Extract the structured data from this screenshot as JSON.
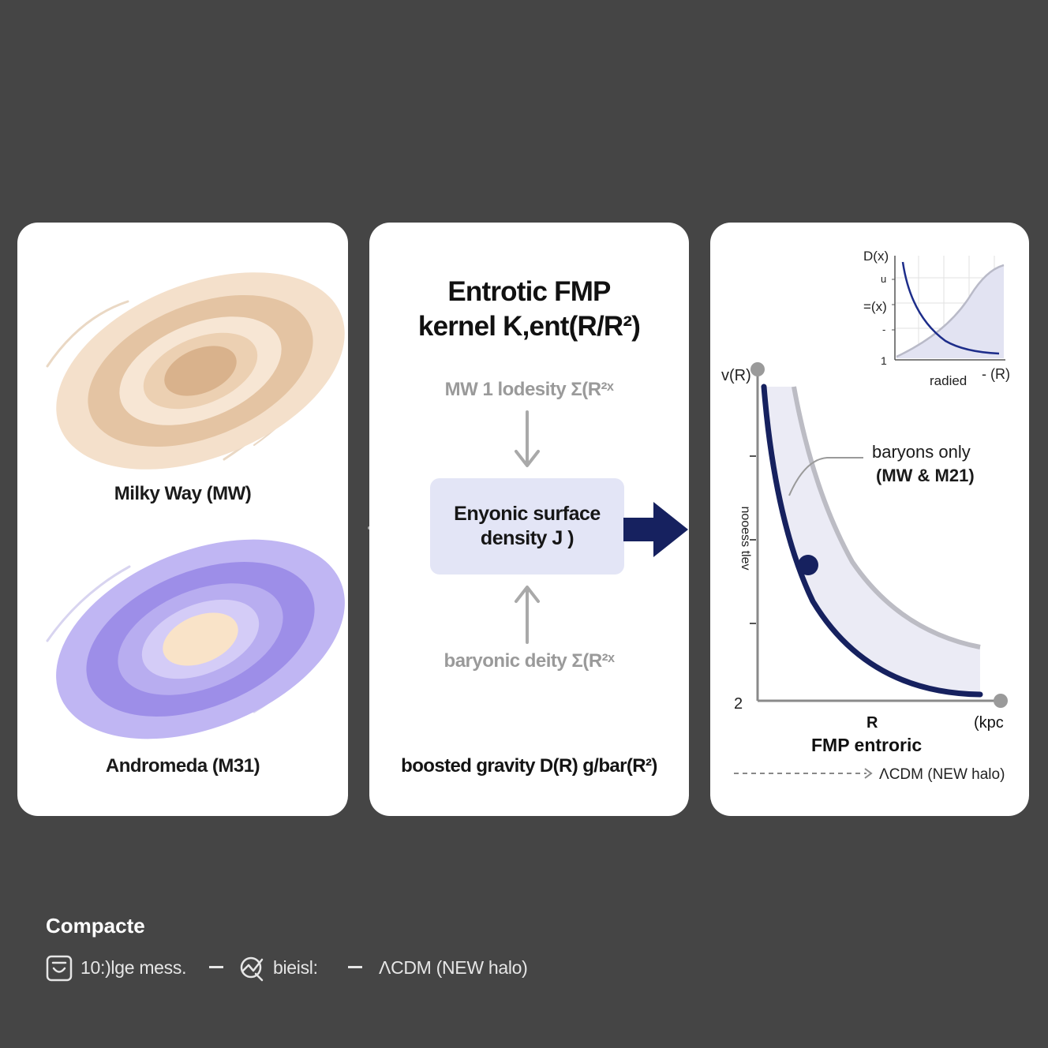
{
  "galaxies": {
    "milky_way_label": "Milky Way (MW)",
    "andromeda_label": "Andromeda (M31)",
    "milky_way_colors": [
      "#f4e0cb",
      "#e4c4a3",
      "#f7e6d4",
      "#ecd0b2",
      "#d9b28c"
    ],
    "andromeda_colors": [
      "#c0b6f3",
      "#9d8ee8",
      "#b8adf0",
      "#d4ccf7",
      "#f9e3c8"
    ]
  },
  "kernel": {
    "title_line1": "Entrotic FMP",
    "title_line2": "kernel K,ent(R/R²)",
    "top_input": "MW 1 lodesity Σ(R²ˣ",
    "box_line1": "Enyonic surface",
    "box_line2": "density J )",
    "bottom_input": "baryonic deity Σ(R²ˣ",
    "output_label": "boosted gravity D(R) g/bar(R²)",
    "arrow_color": "#16215f"
  },
  "curve_panel": {
    "y_axis_label": "v(R)",
    "y_axis_rotated": "nooess tlev",
    "y_axis_bottom_tick": "2",
    "x_axis_label": "R",
    "x_axis_unit": "(kpc",
    "main_caption": "FMP entroric",
    "callout_line1": "baryons only",
    "callout_line2": "(MW & M21)",
    "legend_label": "ΛCDM (NEW halo)",
    "colors": {
      "fmp_curve": "#16215f",
      "baryon_curve": "#bcbcc4",
      "band": "#ebebf5"
    }
  },
  "inset": {
    "y_label_top": "D(x)",
    "y_label_mid_a": "u",
    "y_label_mid_b": "=(x)",
    "y_label_mid_c": "-",
    "y_label_bottom": "1",
    "x_label": "radied",
    "x_ticks_extra": "- (R)"
  },
  "footer": {
    "title": "Compacte",
    "item1": "10:)lge mess.",
    "item2": "bieisl:",
    "item3": "ΛCDM (NEW halo)"
  }
}
